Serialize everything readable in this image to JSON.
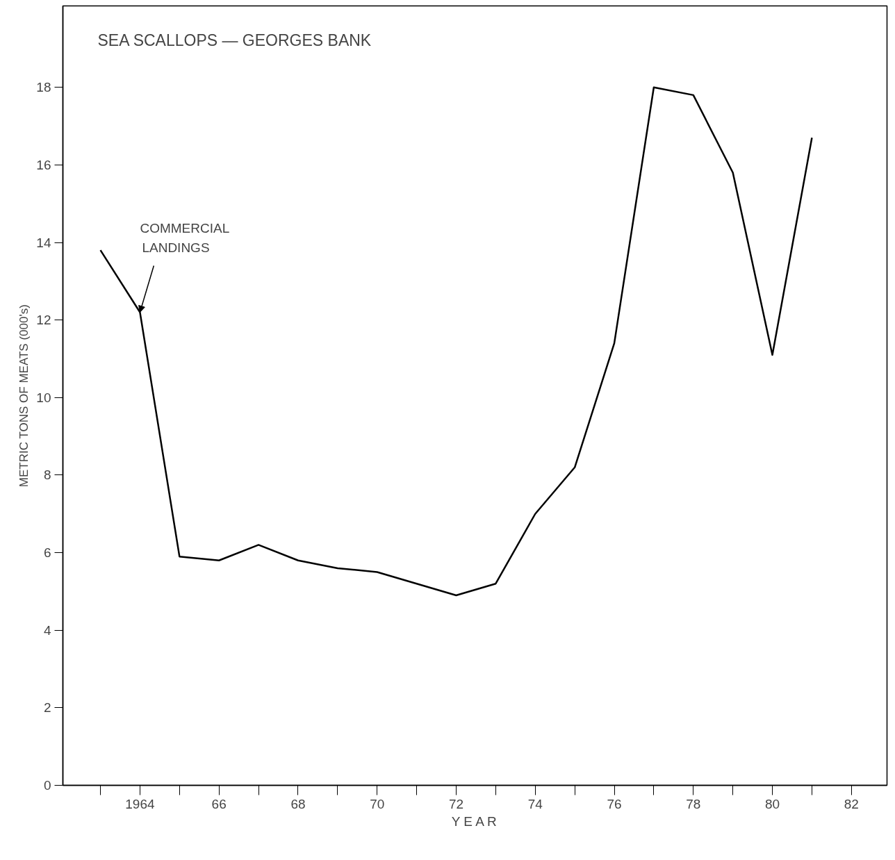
{
  "chart_data": {
    "type": "line",
    "title": "SEA SCALLOPS — GEORGES BANK",
    "xlabel": "Y E A R",
    "ylabel": "METRIC TONS OF MEATS (000's)",
    "x": [
      1963,
      1964,
      1965,
      1966,
      1967,
      1968,
      1969,
      1970,
      1971,
      1972,
      1973,
      1974,
      1975,
      1976,
      1977,
      1978,
      1979,
      1980,
      1981
    ],
    "series": [
      {
        "color": "#000000",
        "values": [
          13.8,
          12.2,
          5.9,
          5.8,
          6.2,
          5.8,
          5.6,
          5.5,
          5.2,
          4.9,
          5.2,
          7.0,
          8.2,
          11.4,
          18.0,
          17.8,
          15.8,
          11.1,
          16.7
        ]
      }
    ],
    "annotations": [
      {
        "text": "COMMERCIAL\nLANDINGS",
        "x": 1964,
        "y": 12.2
      }
    ],
    "xlim": [
      1962.05,
      1982.9
    ],
    "ylim": [
      0,
      20.1
    ],
    "xticks": [
      {
        "value": 1963,
        "label": null
      },
      {
        "value": 1964,
        "label": "1964"
      },
      {
        "value": 1965,
        "label": null
      },
      {
        "value": 1966,
        "label": "66"
      },
      {
        "value": 1967,
        "label": null
      },
      {
        "value": 1968,
        "label": "68"
      },
      {
        "value": 1969,
        "label": null
      },
      {
        "value": 1970,
        "label": "70"
      },
      {
        "value": 1971,
        "label": null
      },
      {
        "value": 1972,
        "label": "72"
      },
      {
        "value": 1973,
        "label": null
      },
      {
        "value": 1974,
        "label": "74"
      },
      {
        "value": 1975,
        "label": null
      },
      {
        "value": 1976,
        "label": "76"
      },
      {
        "value": 1977,
        "label": null
      },
      {
        "value": 1978,
        "label": "78"
      },
      {
        "value": 1979,
        "label": null
      },
      {
        "value": 1980,
        "label": "80"
      },
      {
        "value": 1981,
        "label": null
      },
      {
        "value": 1982,
        "label": "82"
      }
    ],
    "yticks": [
      0,
      2,
      4,
      6,
      8,
      10,
      12,
      14,
      16,
      18
    ],
    "grid": false,
    "marker": "none",
    "line_style": "solid"
  }
}
